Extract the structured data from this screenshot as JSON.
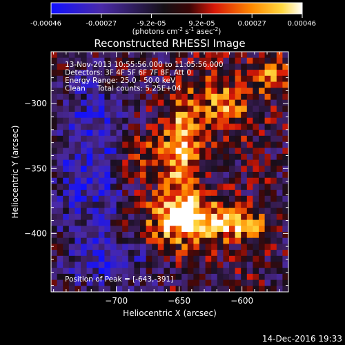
{
  "colors": {
    "background": "#000000",
    "text": "#ffffff",
    "colormap": "blue-purple-black-red-orange-yellow-white"
  },
  "colorbar": {
    "tick_labels": [
      "-0.00046",
      "-0.00027",
      "-9.2e-05",
      "9.2e-05",
      "0.00027",
      "0.00046"
    ],
    "range": [
      -0.00046,
      0.00046
    ],
    "unit_parts": [
      "(photons cm",
      "-2",
      " s",
      "-1",
      " asec",
      "-2",
      ")"
    ]
  },
  "footer": {
    "date": "14-Dec-2016 19:33"
  },
  "chart_data": {
    "type": "heatmap",
    "title": "Reconstructed RHESSI Image",
    "xlabel": "Heliocentric X (arcsec)",
    "ylabel": "Heliocentric Y (arcsec)",
    "xlim": [
      -752,
      -563
    ],
    "ylim": [
      -445,
      -260
    ],
    "x_ticks": [
      -700,
      -650,
      -600
    ],
    "y_ticks": [
      -300,
      -350,
      -400
    ],
    "annotations": [
      "13-Nov-2013 10:55:56.000 to 11:05:56.000",
      "Detectors: 3F 4F 5F 6F 7F 8F, Att 0",
      "Energy Range: 25.0 - 50.0 keV",
      "Clean     Total counts: 5.25E+04"
    ],
    "peak_text": "Position of Peak = [-643,-391]",
    "peak": [
      -643,
      -391
    ],
    "grid": false
  }
}
